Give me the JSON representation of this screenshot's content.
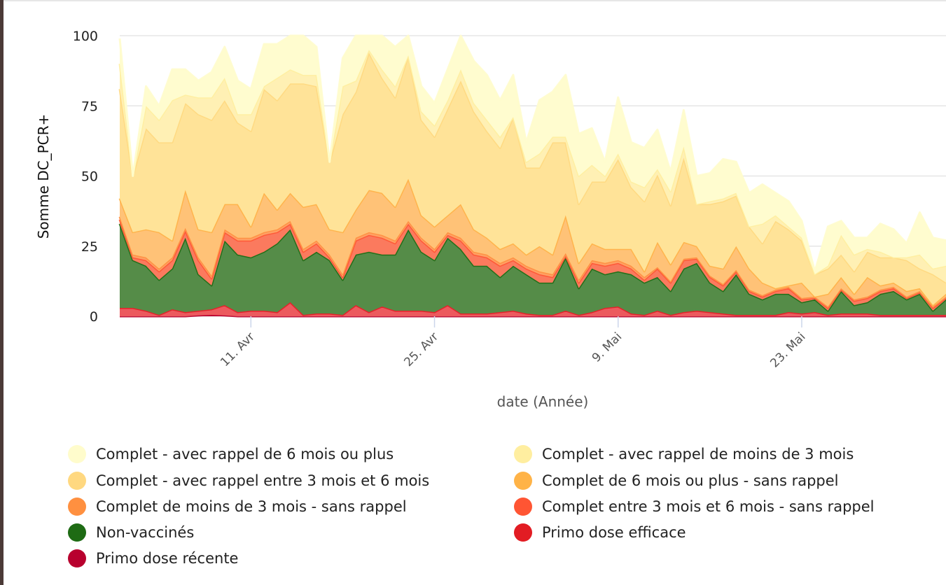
{
  "chart_data": {
    "type": "area",
    "stacked": true,
    "title": "",
    "xlabel": "date (Année)",
    "ylabel": "Somme DC_PCR+",
    "ylim": [
      0,
      100
    ],
    "yticks": [
      0,
      25,
      50,
      75,
      100
    ],
    "x_start": "1 Avr",
    "x_unit": "days since 1 Avr",
    "xlim": [
      0,
      63
    ],
    "xticks": [
      {
        "day": 10,
        "label": "11. Avr"
      },
      {
        "day": 24,
        "label": "25. Avr"
      },
      {
        "day": 38,
        "label": "9. Mai"
      },
      {
        "day": 52,
        "label": "23. Mai"
      }
    ],
    "grid": true,
    "legend_position": "bottom",
    "series": [
      {
        "name": "Primo dose récente",
        "color": "#b8002e",
        "fill": "#c8103a",
        "values": [
          0,
          0,
          0,
          0,
          0,
          0,
          0.3,
          0.5,
          0.3,
          0,
          0,
          0,
          0,
          0,
          0,
          0,
          0,
          0,
          0,
          0,
          0,
          0,
          0,
          0,
          0,
          0,
          0,
          0,
          0,
          0,
          0,
          0,
          0,
          0,
          0,
          0,
          0,
          0,
          0,
          0,
          0,
          0,
          0,
          0,
          0,
          0,
          0,
          0,
          0,
          0,
          0,
          0,
          0,
          0,
          0,
          0,
          0,
          0,
          0,
          0,
          0,
          0,
          0,
          0
        ]
      },
      {
        "name": "Primo dose efficace",
        "color": "#e21c23",
        "fill": "#ec5a5e",
        "values": [
          3,
          3,
          2,
          0.5,
          2.5,
          1.5,
          1.7,
          2,
          3.7,
          1.5,
          2,
          2,
          1.5,
          5,
          0.5,
          1,
          1,
          0.5,
          4,
          1.5,
          3.5,
          2,
          2,
          2,
          1.5,
          4,
          1,
          1,
          1,
          1.5,
          2,
          1,
          0.5,
          0.5,
          2,
          0.5,
          1.5,
          3,
          3.5,
          1,
          0.5,
          2,
          0.5,
          1.5,
          2,
          1.5,
          1,
          0.5,
          0.5,
          0.5,
          0.5,
          1.5,
          1,
          1.5,
          0.5,
          1,
          1,
          1,
          0.5,
          0.5,
          0.5,
          0.5,
          0.5,
          0.5
        ]
      },
      {
        "name": "Non-vaccinés",
        "color": "#1e6b14",
        "fill": "#558c48",
        "values": [
          30,
          17,
          16,
          12.5,
          14.5,
          26.5,
          13,
          8.5,
          23,
          20.5,
          19,
          21,
          24.5,
          26,
          19.5,
          22,
          19,
          12.5,
          18,
          21.5,
          18.5,
          20,
          29,
          21,
          18.5,
          24,
          23,
          17,
          17,
          12.5,
          16,
          14,
          11.5,
          11.5,
          19,
          9.5,
          15.5,
          12,
          12.5,
          14,
          11.5,
          12,
          8.5,
          15.5,
          17,
          10.5,
          8,
          14.5,
          7.5,
          5.5,
          7.5,
          6.5,
          4,
          4.5,
          1.5,
          8,
          3,
          4,
          7.5,
          8.5,
          5.5,
          7.5,
          1.5,
          5.5
        ]
      },
      {
        "name": "Complet entre 3 mois et 6 mois - sans rappel",
        "color": "#ff5533",
        "fill": "#fb7a5e",
        "values": [
          1.5,
          1,
          2,
          3,
          3,
          2.5,
          5,
          2.5,
          3,
          5,
          6,
          6,
          4,
          2,
          3,
          3,
          1,
          1,
          5,
          6,
          6,
          4,
          2,
          4,
          3,
          1,
          3,
          4,
          3,
          4,
          2,
          2,
          3,
          2,
          0.5,
          2,
          2,
          3,
          3,
          2,
          1,
          3,
          3,
          3,
          1.5,
          2,
          2,
          1,
          1,
          1,
          1,
          2,
          1,
          0.5,
          1,
          0.5,
          1.5,
          1.5,
          1,
          1,
          0.5,
          0.5,
          1,
          0.5
        ]
      },
      {
        "name": "Complet de moins de 3 mois - sans rappel",
        "color": "#ff9040",
        "fill": "#ffa064",
        "values": [
          1,
          1,
          1,
          1,
          1,
          1,
          1,
          1,
          1,
          1,
          1,
          1,
          1,
          1,
          1,
          1,
          1,
          1,
          1,
          1,
          1,
          1,
          1,
          1,
          1,
          1,
          1,
          1,
          1,
          1,
          1,
          1,
          1,
          1,
          1,
          1,
          1,
          1,
          1,
          1,
          1,
          0.5,
          0.5,
          0.5,
          0.5,
          0.5,
          0.5,
          0.5,
          0.5,
          0.5,
          0.5,
          0.5,
          0.5,
          0.5,
          0.5,
          0.5,
          0.5,
          0.5,
          0.5,
          0.5,
          0.5,
          0.5,
          0.5,
          0.5
        ]
      },
      {
        "name": "Complet de 6 mois ou plus - sans rappel",
        "color": "#ffb347",
        "fill": "#ffc277",
        "values": [
          6.5,
          8,
          10,
          13,
          6,
          13.5,
          10,
          15.5,
          9,
          12,
          4,
          14,
          7,
          10,
          15,
          13,
          9,
          15,
          10,
          15,
          15,
          12,
          15,
          8,
          8,
          6,
          12,
          8,
          6,
          5,
          5,
          4,
          9,
          7,
          13.5,
          6,
          6,
          5,
          4,
          6,
          2,
          9,
          6,
          6,
          4,
          3.5,
          5.5,
          8.5,
          7.5,
          4.5,
          0.5,
          0.5,
          5.5,
          0,
          4.5,
          4,
          2,
          7,
          1.5,
          1.5,
          2,
          1,
          0.5,
          1
        ]
      },
      {
        "name": "Complet - avec rappel entre 3 mois et 6 mois",
        "color": "#ffd880",
        "fill": "#ffe398",
        "values": [
          39,
          20,
          36,
          32,
          35,
          31,
          41,
          40,
          37,
          29,
          34,
          37,
          39,
          39,
          44,
          42,
          24,
          42,
          42,
          49,
          41,
          39,
          44,
          34,
          32,
          38,
          44,
          42,
          38,
          36,
          45,
          31,
          28,
          40,
          26,
          21,
          22,
          24,
          32,
          22,
          25,
          24,
          21,
          30,
          15,
          22,
          24,
          18,
          15,
          14,
          24,
          20,
          15,
          8,
          9,
          8,
          8,
          9,
          10,
          9,
          11,
          7,
          11,
          4
        ]
      },
      {
        "name": "Complet - avec rappel de moins de 3 mois",
        "color": "#ffeea0",
        "fill": "#fff0b4",
        "values": [
          9,
          0,
          8,
          8,
          15,
          3,
          6,
          8,
          8,
          3,
          6,
          1,
          8,
          5,
          3,
          4,
          0,
          10,
          4,
          1,
          3,
          4,
          0,
          3,
          4,
          3,
          4,
          3,
          4,
          4,
          0,
          2,
          5,
          2,
          2,
          10,
          6,
          2,
          2,
          2,
          5,
          2,
          5,
          4,
          0,
          1,
          1,
          1,
          0,
          7,
          2,
          1,
          1,
          0,
          1,
          7,
          6,
          1,
          2,
          0,
          1,
          5,
          2,
          6
        ]
      },
      {
        "name": "Complet - avec rappel de 6 mois ou plus",
        "color": "#fffccc",
        "fill": "#fffccf",
        "values": [
          9,
          0,
          7,
          5,
          11,
          9,
          6,
          9,
          11,
          12,
          9,
          15,
          12,
          12,
          14,
          10,
          0,
          10,
          16,
          5,
          12,
          14,
          7,
          9,
          8,
          11,
          12,
          15,
          16,
          13,
          15,
          7,
          19,
          16,
          22,
          15,
          13,
          5,
          20,
          14,
          14,
          14,
          7,
          13,
          10,
          10,
          14,
          11,
          12,
          14,
          8,
          9,
          6,
          1,
          14,
          5,
          6,
          4,
          10,
          10,
          5,
          15,
          11,
          9
        ]
      }
    ]
  },
  "legend": {
    "column_left": [
      "Complet - avec rappel de 6 mois ou plus",
      "Complet - avec rappel entre 3 mois et 6 mois",
      "Complet de moins de 3 mois - sans rappel",
      "Non-vaccinés",
      "Primo dose récente"
    ],
    "column_right": [
      "Complet - avec rappel de moins de 3 mois",
      "Complet de 6 mois ou plus - sans rappel",
      "Complet entre 3 mois et 6 mois - sans rappel",
      "Primo dose efficace"
    ]
  }
}
